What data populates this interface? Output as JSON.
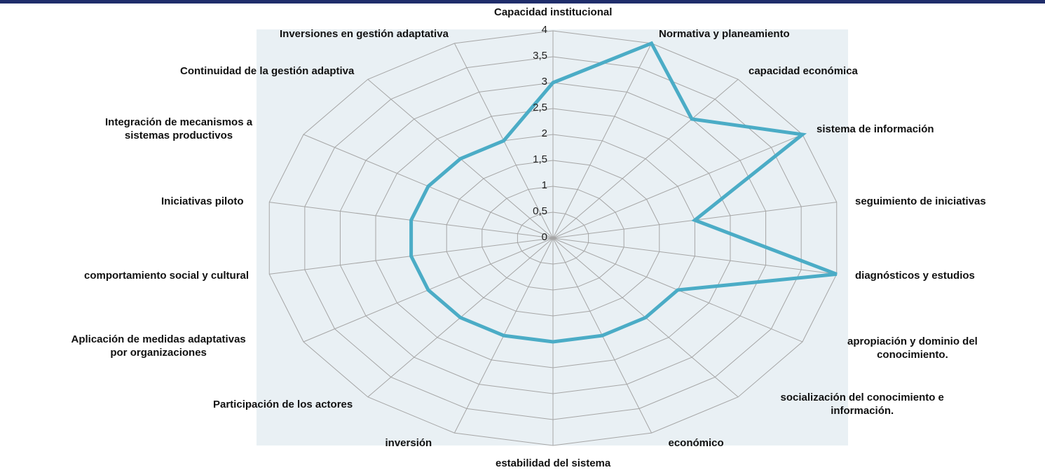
{
  "chart_data": {
    "type": "radar",
    "categories": [
      "Capacidad institucional",
      "Normativa y planeamiento",
      "capacidad económica",
      "sistema de información",
      "seguimiento de iniciativas",
      "diagnósticos y estudios",
      "apropiación y dominio del\nconocimiento.",
      "socialización del conocimiento e\ninformación.",
      "económico",
      "estabilidad del sistema",
      "inversión",
      "Participación de los actores",
      "Aplicación de medidas adaptativas\npor organizaciones",
      "comportamiento social y cultural",
      "Iniciativas piloto",
      "Integración de mecanismos a\nsistemas productivos",
      "Continuidad de la gestión adaptiva",
      "Inversiones en gestión adaptativa"
    ],
    "series": [
      {
        "color": "#4bacc6",
        "values": [
          3,
          4,
          3,
          4,
          2,
          4,
          2,
          2,
          2,
          2,
          2,
          2,
          2,
          2,
          2,
          2,
          2,
          2
        ]
      }
    ],
    "ylim": [
      0,
      4
    ],
    "yticks": [
      0,
      {
        "value": 0.5,
        "label": "0,5"
      },
      1,
      {
        "value": 1.5,
        "label": "1,5"
      },
      2,
      {
        "value": 2.5,
        "label": "2,5"
      },
      3,
      {
        "value": 3.5,
        "label": "3,5"
      },
      4
    ],
    "grid": true
  }
}
